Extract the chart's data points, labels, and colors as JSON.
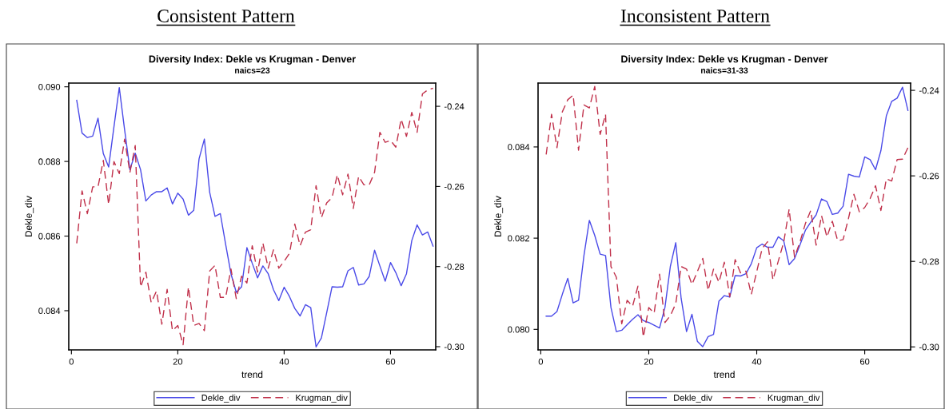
{
  "chart_data": [
    {
      "type": "line",
      "title": "Diversity Index: Dekle vs Krugman - Denver",
      "subtitle": "naics=23",
      "annotations": [
        "Consistent Pattern"
      ],
      "xlabel": "trend",
      "ylabel": "Dekle_div",
      "x": [
        1,
        2,
        3,
        4,
        5,
        6,
        7,
        8,
        9,
        10,
        11,
        12,
        13,
        14,
        15,
        16,
        17,
        18,
        19,
        20,
        21,
        22,
        23,
        24,
        25,
        26,
        27,
        28,
        29,
        30,
        31,
        32,
        33,
        34,
        35,
        36,
        37,
        38,
        39,
        40,
        41,
        42,
        43,
        44,
        45,
        46,
        47,
        48,
        49,
        50,
        51,
        52,
        53,
        54,
        55,
        56,
        57,
        58,
        59,
        60,
        61,
        62,
        63,
        64,
        65,
        66,
        67,
        68
      ],
      "xlim": [
        -0.5,
        68.5
      ],
      "xticks": [
        0,
        20,
        40,
        60
      ],
      "ylim": [
        0.08295,
        0.0901
      ],
      "yticks": [
        {
          "value": 0.084,
          "label": "0.084"
        },
        {
          "value": 0.086,
          "label": "0.086"
        },
        {
          "value": 0.088,
          "label": "0.088"
        },
        {
          "value": 0.09,
          "label": "0.090"
        }
      ],
      "y2lim": [
        -0.3008,
        -0.2342
      ],
      "y2ticks": [
        {
          "value": -0.3,
          "label": "-0.30"
        },
        {
          "value": -0.28,
          "label": "-0.28"
        },
        {
          "value": -0.26,
          "label": "-0.26"
        },
        {
          "value": -0.24,
          "label": "-0.24"
        }
      ],
      "legend": "bottom",
      "grid": false,
      "marker": "none",
      "series": [
        {
          "name": "Dekle_div",
          "color": "#4a4ae8",
          "line_style": "solid",
          "values": [
            0.08964,
            0.08876,
            0.08864,
            0.08868,
            0.08916,
            0.08821,
            0.08785,
            0.08893,
            0.08998,
            0.08885,
            0.08778,
            0.08822,
            0.08778,
            0.08694,
            0.0871,
            0.08719,
            0.08719,
            0.08729,
            0.08686,
            0.08715,
            0.08699,
            0.08656,
            0.08669,
            0.08807,
            0.0886,
            0.08717,
            0.08653,
            0.0866,
            0.08578,
            0.08499,
            0.08449,
            0.08464,
            0.08569,
            0.08527,
            0.08488,
            0.0852,
            0.08499,
            0.08456,
            0.08427,
            0.08463,
            0.08438,
            0.08406,
            0.08386,
            0.08416,
            0.08408,
            0.08303,
            0.08327,
            0.08395,
            0.08464,
            0.08463,
            0.08464,
            0.08507,
            0.08516,
            0.08469,
            0.08472,
            0.08492,
            0.08562,
            0.0852,
            0.08479,
            0.08529,
            0.08502,
            0.08467,
            0.08499,
            0.08588,
            0.0863,
            0.08603,
            0.08611,
            0.08573
          ]
        },
        {
          "name": "Krugman_div",
          "color": "#c0304a",
          "line_style": "dashed",
          "axis": "y2",
          "values": [
            -0.2742,
            -0.2611,
            -0.2668,
            -0.2601,
            -0.2601,
            -0.2535,
            -0.2645,
            -0.2538,
            -0.2568,
            -0.2482,
            -0.2565,
            -0.2498,
            -0.2851,
            -0.2814,
            -0.289,
            -0.2861,
            -0.2944,
            -0.2857,
            -0.296,
            -0.2947,
            -0.2995,
            -0.2851,
            -0.2947,
            -0.2942,
            -0.296,
            -0.2811,
            -0.2797,
            -0.2877,
            -0.2877,
            -0.2806,
            -0.288,
            -0.2824,
            -0.2841,
            -0.2748,
            -0.2814,
            -0.2741,
            -0.2804,
            -0.2758,
            -0.2804,
            -0.2787,
            -0.2767,
            -0.2694,
            -0.2748,
            -0.2714,
            -0.2708,
            -0.2598,
            -0.2678,
            -0.2641,
            -0.2628,
            -0.2571,
            -0.2621,
            -0.2569,
            -0.2655,
            -0.2575,
            -0.2596,
            -0.2596,
            -0.2565,
            -0.2465,
            -0.249,
            -0.2485,
            -0.2502,
            -0.2432,
            -0.2475,
            -0.2415,
            -0.2465,
            -0.2369,
            -0.2359,
            -0.2355
          ]
        }
      ]
    },
    {
      "type": "line",
      "title": "Diversity Index: Dekle vs Krugman - Denver",
      "subtitle": "naics=31-33",
      "annotations": [
        "Inconsistent Pattern"
      ],
      "xlabel": "trend",
      "ylabel": "Dekle_div",
      "x": [
        1,
        2,
        3,
        4,
        5,
        6,
        7,
        8,
        9,
        10,
        11,
        12,
        13,
        14,
        15,
        16,
        17,
        18,
        19,
        20,
        21,
        22,
        23,
        24,
        25,
        26,
        27,
        28,
        29,
        30,
        31,
        32,
        33,
        34,
        35,
        36,
        37,
        38,
        39,
        40,
        41,
        42,
        43,
        44,
        45,
        46,
        47,
        48,
        49,
        50,
        51,
        52,
        53,
        54,
        55,
        56,
        57,
        58,
        59,
        60,
        61,
        62,
        63,
        64,
        65,
        66,
        67,
        68
      ],
      "xlim": [
        -0.5,
        68.5
      ],
      "xticks": [
        0,
        20,
        40,
        60
      ],
      "ylim": [
        0.07955,
        0.0854
      ],
      "yticks": [
        {
          "value": 0.08,
          "label": "0.080"
        },
        {
          "value": 0.082,
          "label": "0.082"
        },
        {
          "value": 0.084,
          "label": "0.084"
        }
      ],
      "y2lim": [
        -0.3007,
        -0.2383
      ],
      "y2ticks": [
        {
          "value": -0.3,
          "label": "-0.30"
        },
        {
          "value": -0.28,
          "label": "-0.28"
        },
        {
          "value": -0.26,
          "label": "-0.26"
        },
        {
          "value": -0.24,
          "label": "-0.24"
        }
      ],
      "legend": "bottom",
      "grid": false,
      "marker": "none",
      "series": [
        {
          "name": "Dekle_div",
          "color": "#4a4ae8",
          "line_style": "solid",
          "values": [
            0.08029,
            0.08029,
            0.08039,
            0.08077,
            0.08112,
            0.08058,
            0.08064,
            0.08162,
            0.08239,
            0.08206,
            0.08165,
            0.08162,
            0.08048,
            0.07995,
            0.07998,
            0.0801,
            0.08022,
            0.08032,
            0.08019,
            0.08015,
            0.08009,
            0.08003,
            0.08048,
            0.08138,
            0.0819,
            0.08068,
            0.07995,
            0.08033,
            0.07974,
            0.07962,
            0.07984,
            0.07989,
            0.08062,
            0.08074,
            0.08071,
            0.08118,
            0.08117,
            0.08122,
            0.08144,
            0.08179,
            0.08187,
            0.0818,
            0.0818,
            0.08203,
            0.08194,
            0.08142,
            0.08155,
            0.08185,
            0.08217,
            0.08235,
            0.08251,
            0.08286,
            0.0828,
            0.08252,
            0.08255,
            0.0827,
            0.0834,
            0.08336,
            0.08334,
            0.08378,
            0.08372,
            0.0835,
            0.08392,
            0.08468,
            0.085,
            0.08507,
            0.08531,
            0.0848
          ]
        },
        {
          "name": "Krugman_div",
          "color": "#c0304a",
          "line_style": "dashed",
          "axis": "y2",
          "values": [
            -0.255,
            -0.2456,
            -0.2534,
            -0.245,
            -0.2422,
            -0.2411,
            -0.254,
            -0.2434,
            -0.2441,
            -0.2391,
            -0.2503,
            -0.2456,
            -0.2812,
            -0.2837,
            -0.2946,
            -0.2891,
            -0.2905,
            -0.2858,
            -0.2977,
            -0.2908,
            -0.2921,
            -0.283,
            -0.2943,
            -0.2927,
            -0.2899,
            -0.2812,
            -0.2818,
            -0.2854,
            -0.2824,
            -0.2793,
            -0.2868,
            -0.2818,
            -0.2849,
            -0.2802,
            -0.2883,
            -0.2796,
            -0.2827,
            -0.2823,
            -0.2877,
            -0.2824,
            -0.277,
            -0.2754,
            -0.2843,
            -0.2799,
            -0.2755,
            -0.2678,
            -0.279,
            -0.2755,
            -0.2712,
            -0.2681,
            -0.2762,
            -0.2693,
            -0.2743,
            -0.2706,
            -0.2752,
            -0.2749,
            -0.2699,
            -0.2643,
            -0.2684,
            -0.2674,
            -0.2653,
            -0.2623,
            -0.2681,
            -0.2607,
            -0.2612,
            -0.2562,
            -0.2561,
            -0.2534
          ]
        }
      ]
    }
  ]
}
